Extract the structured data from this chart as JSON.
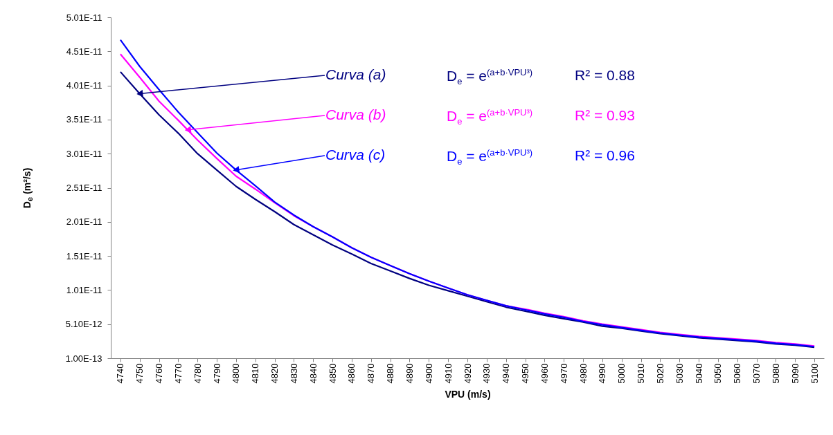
{
  "chart_data": {
    "type": "line",
    "xlabel": "VPU (m/s)",
    "ylabel": "D$_{e}$ (m²/s)",
    "x": [
      4740,
      4750,
      4760,
      4770,
      4780,
      4790,
      4800,
      4810,
      4820,
      4830,
      4840,
      4850,
      4860,
      4870,
      4880,
      4890,
      4900,
      4910,
      4920,
      4930,
      4940,
      4950,
      4960,
      4970,
      4980,
      4990,
      5000,
      5010,
      5020,
      5030,
      5040,
      5050,
      5060,
      5070,
      5080,
      5090,
      5100
    ],
    "xlim": [
      4735,
      5105
    ],
    "xticks": [
      4740,
      4750,
      4760,
      4770,
      4780,
      4790,
      4800,
      4810,
      4820,
      4830,
      4840,
      4850,
      4860,
      4870,
      4880,
      4890,
      4900,
      4910,
      4920,
      4930,
      4940,
      4950,
      4960,
      4970,
      4980,
      4990,
      5000,
      5010,
      5020,
      5030,
      5040,
      5050,
      5060,
      5070,
      5080,
      5090,
      5100
    ],
    "ylim": [
      1e-13,
      5.01e-11
    ],
    "yticks": [
      {
        "value": 1e-13,
        "label": "1.00E-13"
      },
      {
        "value": 5.1e-12,
        "label": "5.10E-12"
      },
      {
        "value": 1.01e-11,
        "label": "1.01E-11"
      },
      {
        "value": 1.51e-11,
        "label": "1.51E-11"
      },
      {
        "value": 2.01e-11,
        "label": "2.01E-11"
      },
      {
        "value": 2.51e-11,
        "label": "2.51E-11"
      },
      {
        "value": 3.01e-11,
        "label": "3.01E-11"
      },
      {
        "value": 3.51e-11,
        "label": "3.51E-11"
      },
      {
        "value": 4.01e-11,
        "label": "4.01E-11"
      },
      {
        "value": 4.51e-11,
        "label": "4.51E-11"
      },
      {
        "value": 5.01e-11,
        "label": "5.01E-11"
      }
    ],
    "series": [
      {
        "color": "#000080",
        "values": [
          4.21e-11,
          3.89e-11,
          3.58e-11,
          3.31e-11,
          3.01e-11,
          2.77e-11,
          2.53e-11,
          2.34e-11,
          2.16e-11,
          1.97e-11,
          1.82e-11,
          1.67e-11,
          1.54e-11,
          1.4e-11,
          1.29e-11,
          1.18e-11,
          1.08e-11,
          1e-11,
          9.2e-12,
          8.4e-12,
          7.6e-12,
          7e-12,
          6.4e-12,
          5.9e-12,
          5.4e-12,
          4.8e-12,
          4.5e-12,
          4.1e-12,
          3.7e-12,
          3.4e-12,
          3.1e-12,
          2.9e-12,
          2.7e-12,
          2.5e-12,
          2.2e-12,
          2e-12,
          1.7e-12
        ]
      },
      {
        "color": "#ff00ff",
        "values": [
          4.47e-11,
          4.13e-11,
          3.78e-11,
          3.5e-11,
          3.21e-11,
          2.94e-11,
          2.68e-11,
          2.49e-11,
          2.29e-11,
          2.1e-11,
          1.94e-11,
          1.79e-11,
          1.63e-11,
          1.49e-11,
          1.37e-11,
          1.25e-11,
          1.14e-11,
          1.04e-11,
          9.4e-12,
          8.6e-12,
          7.8e-12,
          7.3e-12,
          6.7e-12,
          6.2e-12,
          5.6e-12,
          5.1e-12,
          4.7e-12,
          4.3e-12,
          3.9e-12,
          3.6e-12,
          3.3e-12,
          3.1e-12,
          2.9e-12,
          2.7e-12,
          2.4e-12,
          2.2e-12,
          1.9e-12
        ]
      },
      {
        "color": "#0000ff",
        "values": [
          4.68e-11,
          4.29e-11,
          3.95e-11,
          3.62e-11,
          3.32e-11,
          3.02e-11,
          2.77e-11,
          2.54e-11,
          2.3e-11,
          2.11e-11,
          1.94e-11,
          1.79e-11,
          1.63e-11,
          1.49e-11,
          1.37e-11,
          1.25e-11,
          1.14e-11,
          1.04e-11,
          9.4e-12,
          8.6e-12,
          7.8e-12,
          7.2e-12,
          6.6e-12,
          6.1e-12,
          5.5e-12,
          5e-12,
          4.6e-12,
          4.2e-12,
          3.8e-12,
          3.5e-12,
          3.2e-12,
          3e-12,
          2.8e-12,
          2.6e-12,
          2.3e-12,
          2.1e-12,
          1.8e-12
        ]
      }
    ],
    "annotations": [
      {
        "text": "Curva (a)",
        "x": 4750,
        "y": 3.89e-11
      },
      "D$_{e}$ = e$^{(a+b·VPU³)}$",
      "R² = 0.88",
      {
        "text": "Curva (b)",
        "x": 4775,
        "y": 3.36e-11
      },
      "D$_{e}$ = e$^{(a+b·VPU³)}$",
      "R² = 0.93",
      {
        "text": "Curva (c)",
        "x": 4800,
        "y": 2.77e-11
      },
      "D$_{e}$ = e$^{(a+b·VPU³)}$",
      "R² = 0.96"
    ]
  }
}
